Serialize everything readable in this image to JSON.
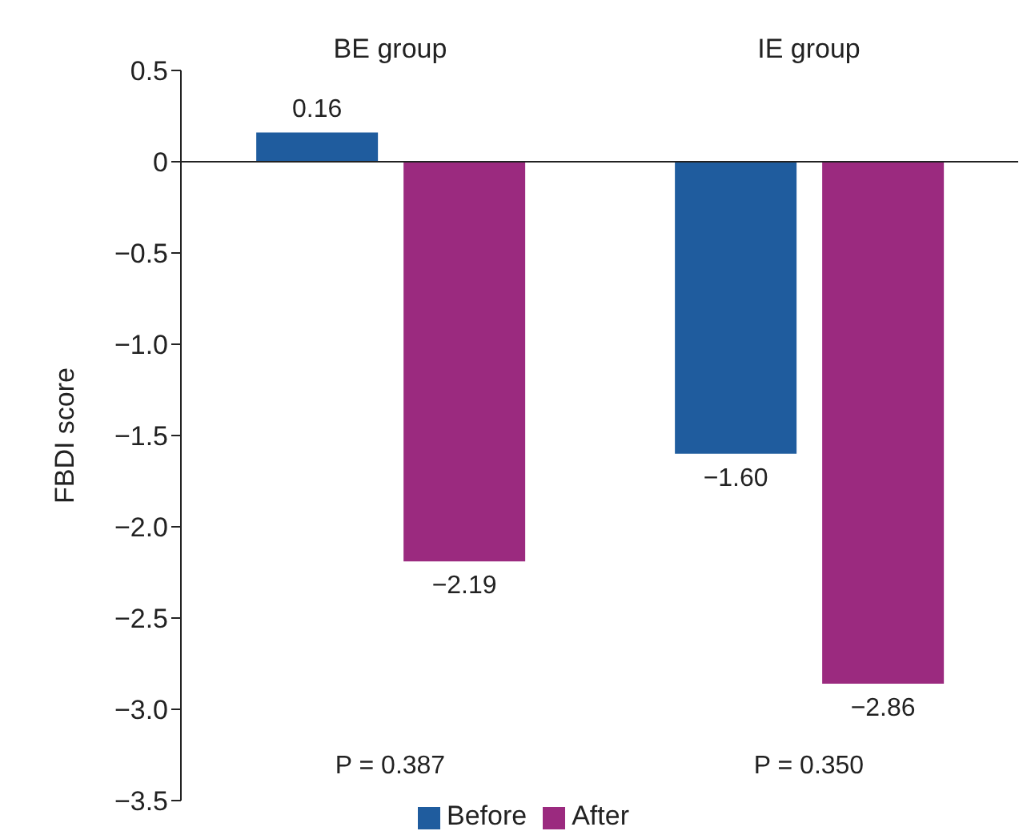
{
  "chart_data": {
    "type": "bar",
    "ylabel": "FBDI score",
    "categories": [
      "BE group",
      "IE group"
    ],
    "series": [
      {
        "name": "Before",
        "color": "#1f5c9e",
        "values": [
          0.16,
          -1.6
        ],
        "value_labels": [
          "0.16",
          "−1.60"
        ]
      },
      {
        "name": "After",
        "color": "#9b2a7f",
        "values": [
          -2.19,
          -2.86
        ],
        "value_labels": [
          "−2.19",
          "−2.86"
        ]
      }
    ],
    "ylim": [
      -3.5,
      0.5
    ],
    "yticks": [
      0.5,
      {
        "value": 0,
        "label": "0"
      },
      {
        "value": -0.5,
        "label": "−0.5"
      },
      {
        "value": -1,
        "label": "−1.0"
      },
      {
        "value": -1.5,
        "label": "−1.5"
      },
      {
        "value": -2,
        "label": "−2.0"
      },
      {
        "value": -2.5,
        "label": "−2.5"
      },
      {
        "value": -3,
        "label": "−3.0"
      },
      {
        "value": -3.5,
        "label": "−3.5"
      }
    ],
    "annotations": [
      "P = 0.387",
      "P = 0.350"
    ],
    "legend": "bottom"
  }
}
